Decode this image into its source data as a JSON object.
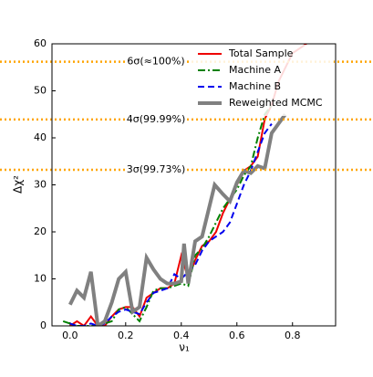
{
  "chart_data": {
    "type": "line",
    "xlabel": "ν₁",
    "ylabel": "Δχ²",
    "xlim": [
      -0.065,
      0.955
    ],
    "ylim": [
      0,
      60
    ],
    "xticks": [
      {
        "value": 0,
        "label": "0.0"
      },
      0.2,
      0.4,
      0.6,
      0.8
    ],
    "yticks": [
      0,
      10,
      20,
      30,
      40,
      50,
      60
    ],
    "legend": "upper right",
    "ref_lines": [
      {
        "value": 56.2,
        "label": "6σ(≈100%)",
        "color": "#ffa500"
      },
      {
        "value": 43.9,
        "label": "4σ(99.99%)",
        "color": "#ffa500"
      },
      {
        "value": 33.2,
        "label": "3σ(99.73%)",
        "color": "#ffa500"
      }
    ],
    "series": [
      {
        "name": "Total Sample",
        "color": "#ee0000",
        "linestyle": "solid",
        "linewidth": 2,
        "x": [
          0,
          0.025,
          0.05,
          0.075,
          0.1,
          0.125,
          0.15,
          0.175,
          0.2,
          0.225,
          0.25,
          0.275,
          0.3,
          0.325,
          0.35,
          0.375,
          0.4,
          0.425,
          0.45,
          0.475,
          0.5,
          0.525,
          0.55,
          0.575,
          0.6,
          0.625,
          0.65,
          0.675,
          0.7,
          0.725,
          0.75,
          0.8,
          0.85
        ],
        "values": [
          0,
          1,
          0,
          2,
          0,
          0,
          2,
          3.5,
          4,
          4,
          2,
          6,
          7,
          8,
          8,
          9,
          15,
          10,
          14,
          17,
          18,
          20,
          24,
          27,
          30,
          33,
          34,
          36,
          44,
          47,
          52,
          58,
          60
        ]
      },
      {
        "name": "Machine A",
        "color": "#008000",
        "linestyle": "dashdot",
        "linewidth": 2,
        "x": [
          -0.025,
          0,
          0.025,
          0.05,
          0.075,
          0.1,
          0.125,
          0.15,
          0.175,
          0.2,
          0.225,
          0.25,
          0.275,
          0.3,
          0.325,
          0.35,
          0.375,
          0.4,
          0.425,
          0.45,
          0.475,
          0.5,
          0.525,
          0.55,
          0.575,
          0.6,
          0.625,
          0.65,
          0.675,
          0.7,
          0.725
        ],
        "values": [
          1,
          0.5,
          0,
          0,
          0,
          0,
          0.5,
          1,
          3.5,
          4,
          2.5,
          1,
          4,
          7.5,
          8,
          8,
          8.5,
          9,
          8.5,
          15,
          16.5,
          19,
          22,
          25,
          27,
          29,
          32,
          34,
          40,
          45,
          47
        ]
      },
      {
        "name": "Machine B",
        "color": "#0000ee",
        "linestyle": "dashed",
        "linewidth": 2,
        "x": [
          0,
          0.025,
          0.05,
          0.075,
          0.1,
          0.125,
          0.15,
          0.175,
          0.2,
          0.225,
          0.25,
          0.275,
          0.3,
          0.325,
          0.35,
          0.375,
          0.4,
          0.425,
          0.45,
          0.475,
          0.5,
          0.525,
          0.55,
          0.575,
          0.6,
          0.625,
          0.65,
          0.675,
          0.7,
          0.725
        ],
        "values": [
          0.5,
          0,
          0,
          0.5,
          0,
          0.5,
          2,
          3,
          3.5,
          3,
          2.5,
          5,
          7,
          7.5,
          8,
          11,
          10,
          11.5,
          13,
          16,
          18,
          19,
          20,
          22,
          26,
          30,
          33,
          37,
          41,
          43
        ]
      },
      {
        "name": "Reweighted MCMC",
        "color": "#808080",
        "linestyle": "solid",
        "linewidth": 4,
        "x": [
          0,
          0.025,
          0.05,
          0.075,
          0.1,
          0.125,
          0.15,
          0.175,
          0.2,
          0.225,
          0.25,
          0.275,
          0.3,
          0.325,
          0.35,
          0.375,
          0.4,
          0.41,
          0.425,
          0.45,
          0.475,
          0.52,
          0.55,
          0.575,
          0.6,
          0.625,
          0.65,
          0.675,
          0.7,
          0.725,
          0.774
        ],
        "values": [
          4.5,
          7.5,
          6,
          11.5,
          0,
          1,
          5,
          10,
          11.5,
          3,
          4,
          14.5,
          12,
          10,
          9,
          9,
          9.5,
          17.5,
          9,
          18,
          19,
          30,
          28,
          26.5,
          30.5,
          33,
          32.5,
          34,
          33.5,
          41,
          45
        ]
      }
    ]
  }
}
